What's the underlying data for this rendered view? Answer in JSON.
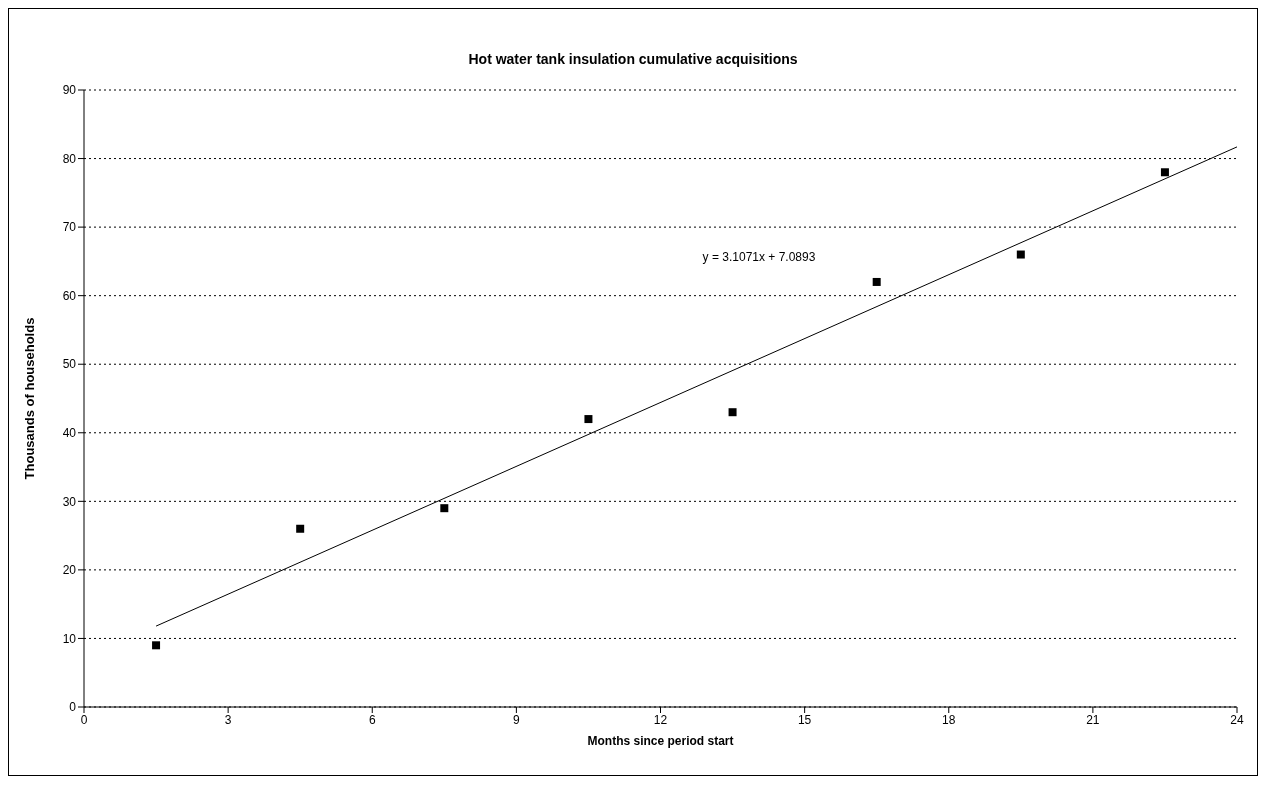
{
  "chart_data": {
    "type": "scatter",
    "title": "Hot water tank insulation cumulative acquisitions",
    "xlabel": "Months since period start",
    "ylabel": "Thousands of households",
    "series": [
      {
        "color": "#000000",
        "x": [
          1.5,
          4.5,
          7.5,
          10.5,
          13.5,
          16.5,
          19.5,
          22.5
        ],
        "values": [
          9,
          26,
          29,
          42,
          43,
          62,
          66,
          78
        ],
        "marker": "square"
      },
      {
        "type": "line",
        "color": "#000000",
        "x": [
          1.5,
          24
        ],
        "values": [
          11.8,
          81.7
        ],
        "marker": "none",
        "line_style": "solid"
      }
    ],
    "annotations": [
      "y = 3.1071x + 7.0893"
    ],
    "xlim": [
      0,
      24
    ],
    "xticks": [
      0,
      3,
      6,
      9,
      12,
      15,
      18,
      21,
      24
    ],
    "ylim": [
      0,
      90
    ],
    "yticks": [
      0,
      10,
      20,
      30,
      40,
      50,
      60,
      70,
      80,
      90
    ],
    "grid": "y",
    "legend": false
  }
}
